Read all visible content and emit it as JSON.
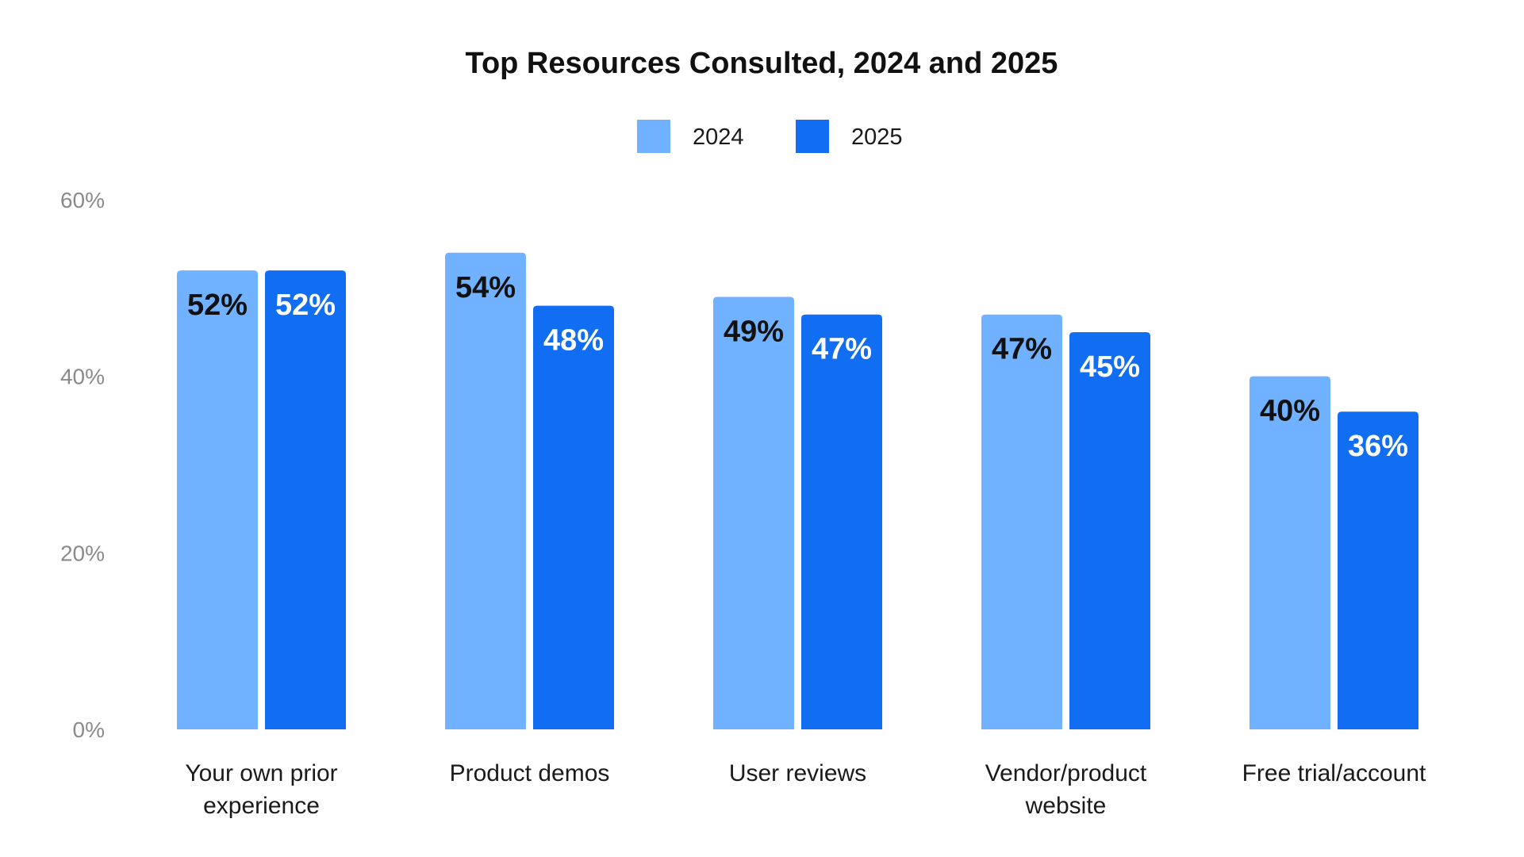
{
  "chart_data": {
    "type": "bar",
    "title": "Top Resources Consulted, 2024 and 2025",
    "xlabel": "",
    "ylabel": "",
    "ylim": [
      0,
      60
    ],
    "yticks": [
      0,
      20,
      40,
      60
    ],
    "ytick_labels": [
      "0%",
      "20%",
      "40%",
      "60%"
    ],
    "grid": false,
    "legend_position": "top-center",
    "categories": [
      [
        "Your own prior",
        "experience"
      ],
      [
        "Product demos"
      ],
      [
        "User reviews"
      ],
      [
        "Vendor/product",
        "website"
      ],
      [
        "Free trial/account"
      ]
    ],
    "series": [
      {
        "name": "2024",
        "color": "#70b2ff",
        "label_color": "#111111",
        "values": [
          52,
          54,
          49,
          47,
          40
        ],
        "labels": [
          "52%",
          "54%",
          "49%",
          "47%",
          "40%"
        ]
      },
      {
        "name": "2025",
        "color": "#116df2",
        "label_color": "#ffffff",
        "values": [
          52,
          48,
          47,
          45,
          36
        ],
        "labels": [
          "52%",
          "48%",
          "47%",
          "45%",
          "36%"
        ]
      }
    ]
  }
}
